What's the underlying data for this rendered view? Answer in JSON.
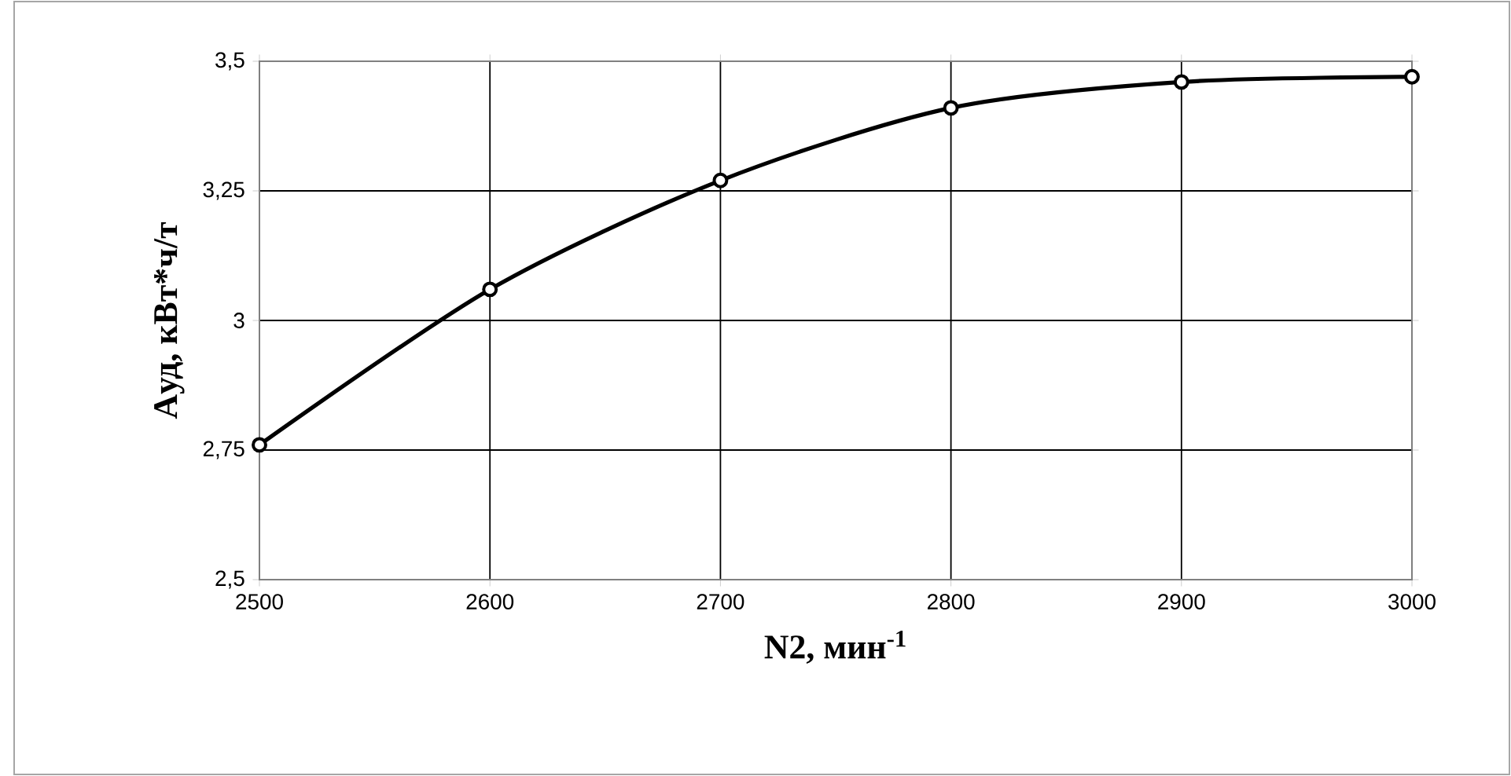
{
  "chart_data": {
    "type": "line",
    "xlabel": "N2, мин$^{-1}$",
    "ylabel": "Aуд, кВт*ч/т",
    "x": [
      2500,
      2600,
      2700,
      2800,
      2900,
      3000
    ],
    "series": [
      {
        "color": "#000000",
        "values": [
          2.76,
          3.06,
          3.27,
          3.41,
          3.46,
          3.47
        ]
      }
    ],
    "xlim": [
      2500,
      3000
    ],
    "xticks": [
      2500,
      2600,
      2700,
      2800,
      2900,
      3000
    ],
    "ylim": [
      2.5,
      3.5
    ],
    "yticks": [
      {
        "value": 2.5,
        "label": "2,5"
      },
      {
        "value": 2.75,
        "label": "2,75"
      },
      {
        "value": 3,
        "label": "3"
      },
      {
        "value": 3.25,
        "label": "3,25"
      },
      {
        "value": 3.5,
        "label": "3,5"
      }
    ],
    "grid": true,
    "marker": "circle",
    "line_style": "solid"
  }
}
